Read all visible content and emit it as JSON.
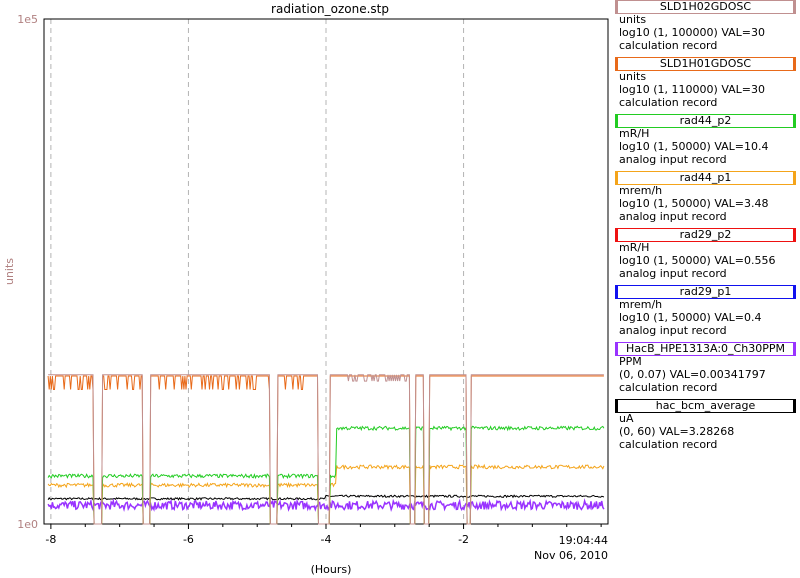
{
  "chart_data": {
    "type": "line",
    "title": "radiation_ozone.stp",
    "xlabel": "(Hours)",
    "ylabel": "units",
    "x_scale": "linear",
    "y_scale": "log",
    "xlim": [
      -8.1,
      0.1
    ],
    "ylim": [
      1,
      100000
    ],
    "x_ticks": [
      -8,
      -6,
      -4,
      -2
    ],
    "x_tick_labels": [
      "-8",
      "-6",
      "-4",
      "-2"
    ],
    "y_tick_labels": [
      "1e0",
      "1e5"
    ],
    "end_time": "19:04:44",
    "end_date": "Nov 06, 2010",
    "grid": true,
    "legend_position": "right",
    "series": [
      {
        "name": "SLD1H02GDOSC",
        "units": "units",
        "range": "log10 (1, 100000) VAL=30",
        "record": "calculation record",
        "color": "#c09090"
      },
      {
        "name": "SLD1H01GDOSC",
        "units": "units",
        "range": "log10 (1, 110000) VAL=30",
        "record": "calculation record",
        "color": "#e86a1a"
      },
      {
        "name": "rad44_p2",
        "units": "mR/H",
        "range": "log10 (1, 50000) VAL=10.4",
        "record": "analog input record",
        "color": "#22cc22"
      },
      {
        "name": "rad44_p1",
        "units": "mrem/h",
        "range": "log10 (1, 50000) VAL=3.48",
        "record": "analog input record",
        "color": "#f4a41a"
      },
      {
        "name": "rad29_p2",
        "units": "mR/H",
        "range": "log10 (1, 50000) VAL=0.556",
        "record": "analog input record",
        "color": "#ee1111"
      },
      {
        "name": "rad29_p1",
        "units": "mrem/h",
        "range": "log10 (1, 50000) VAL=0.4",
        "record": "analog input record",
        "color": "#1111ee"
      },
      {
        "name": "HacB_HPE1313A:0_Ch30PPM",
        "units": "PPM",
        "range": "(0, 0.07) VAL=0.00341797",
        "record": "calculation record",
        "color": "#9933ff"
      },
      {
        "name": "hac_bcm_average",
        "units": "uA",
        "range": "(0, 60) VAL=3.28268",
        "record": "calculation record",
        "color": "#000000"
      }
    ]
  },
  "colors": {
    "axis_label": "#b08080",
    "grid": "#b4b4b4",
    "frame": "#000000"
  }
}
